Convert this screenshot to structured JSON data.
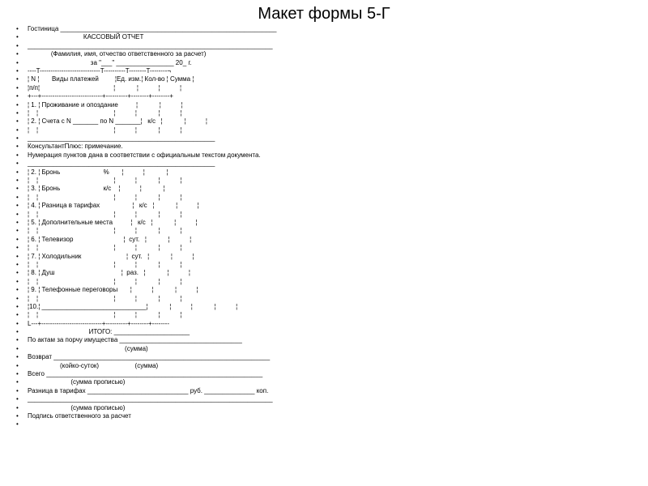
{
  "title": "Макет формы 5-Г",
  "lines": [
    "Гостиница ____________________________________________________________",
    "                               КАССОВЫЙ ОТЧЕТ",
    "____________________________________________________________________",
    "             (Фамилия, имя, отчество ответственного за расчет)",
    "                                   за \"___\" ________________ 20_ г.",
    "----T----------------------------T----------T--------T--------¬",
    "¦ N ¦       Виды платежей         ¦Ед. изм.¦ Кол-во ¦ Сумма ¦",
    "¦п/п¦                                         ¦            ¦           ¦           ¦",
    "+---+----------------------------+----------+--------+--------+",
    "¦ 1. ¦ Проживание и опоздание          ¦            ¦           ¦",
    "¦    ¦                                          ¦           ¦            ¦           ¦",
    "¦ 2. ¦ Счета с N _______ по N _______¦   к/с   ¦            ¦           ¦",
    "¦    ¦                                          ¦           ¦            ¦           ¦",
    "____________________________________________________",
    "КонсультантПлюс: примечание.",
    "Нумерация пунктов дана в соответствии с официальным текстом документа.",
    "____________________________________________________",
    "¦ 2. ¦ Бронь                        %       ¦           ¦            ¦",
    "¦    ¦                                          ¦           ¦            ¦           ¦",
    "¦ 3. ¦ Бронь                        к/с    ¦           ¦            ¦",
    "¦    ¦                                          ¦           ¦            ¦           ¦",
    "¦ 4. ¦ Разница в тарифах                  ¦   к/с   ¦            ¦           ¦",
    "¦    ¦                                          ¦           ¦            ¦           ¦",
    "¦ 5. ¦ Дополнительные места          ¦   к/с   ¦            ¦           ¦",
    "¦    ¦                                          ¦           ¦            ¦           ¦",
    "¦ 6. ¦ Телевизор                            ¦  сут.   ¦            ¦           ¦",
    "¦    ¦                                          ¦           ¦            ¦           ¦",
    "¦ 7. ¦ Холодильник                         ¦  сут.   ¦            ¦           ¦",
    "¦    ¦                                          ¦           ¦            ¦           ¦",
    "¦ 8. ¦ Душ                                     ¦  раз.   ¦            ¦           ¦",
    "¦    ¦                                          ¦           ¦            ¦           ¦",
    "¦ 9. ¦ Телефонные переговоры       ¦           ¦            ¦           ¦",
    "¦    ¦                                          ¦           ¦            ¦           ¦",
    "¦10.¦ _____________________________¦            ¦           ¦            ¦           ¦",
    "¦    ¦                                          ¦           ¦            ¦           ¦",
    "L---+----------------------------+----------+--------+--------",
    "                                  ИТОГО: _____________________",
    "По актам за порчу имущества __________________________________",
    "                                                      (сумма)",
    "Возврат ____________________________________________________________",
    "                  (койко-суток)                    (сумма)",
    "Всего ____________________________________________________________",
    "                        (сумма прописью)",
    "Разница в тарифах ____________________________ руб. ______________ коп.",
    "____________________________________________________________________",
    "                        (сумма прописью)",
    "Подпись ответственного за расчет",
    ""
  ]
}
